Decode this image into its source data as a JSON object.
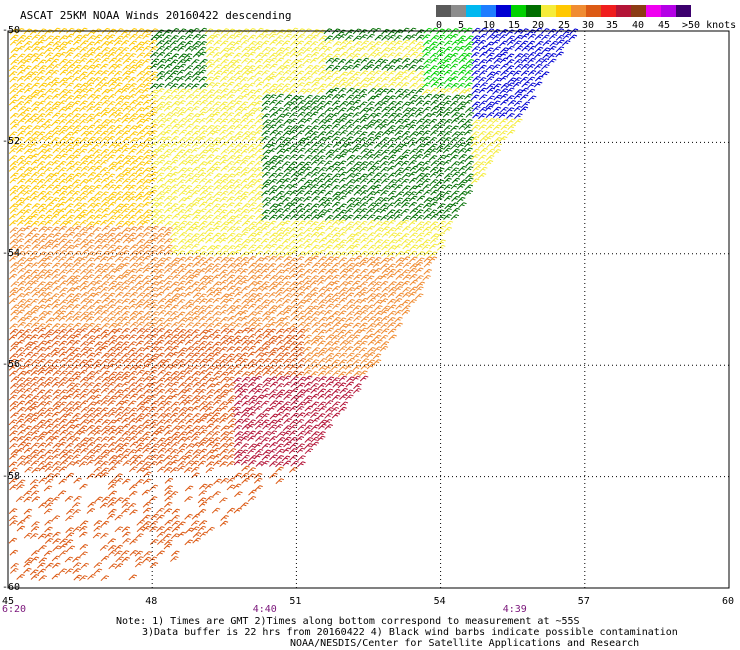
{
  "title": "ASCAT 25KM NOAA Winds 20160422 descending",
  "colorbar": {
    "swatches": [
      "#5a5a5a",
      "#8c8c8c",
      "#00b8f0",
      "#1e7dff",
      "#0000d2",
      "#00d200",
      "#006e00",
      "#f5ec3a",
      "#ffc800",
      "#f08c32",
      "#dc5a14",
      "#f01e1e",
      "#b41437",
      "#8c3c14",
      "#f000f0",
      "#b400e6",
      "#3c006e"
    ],
    "labels": [
      "0",
      "5",
      "10",
      "15",
      "20",
      "25",
      "30",
      "35",
      "40",
      "45",
      ">50 knots"
    ]
  },
  "map": {
    "lat_labels": [
      "-50",
      "-52",
      "-54",
      "-56",
      "-58",
      "-60"
    ],
    "lon_labels": [
      "45",
      "48",
      "51",
      "54",
      "57",
      "60"
    ],
    "lat_range": [
      -60,
      -50
    ],
    "lon_range": [
      45,
      60
    ],
    "time_labels": [
      {
        "lon": 45,
        "text": "6:20"
      },
      {
        "lon": 50.3,
        "text": "4:40"
      },
      {
        "lon": 55.5,
        "text": "4:39"
      }
    ],
    "grid": "dotted"
  },
  "notes": {
    "line1": "Note: 1) Times are GMT 2)Times along bottom correspond to measurement at ~55S",
    "line2": "3)Data buffer is 22 hrs from 20160422 4) Black wind barbs indicate possible contamination",
    "line3": "NOAA/NESDIS/Center for Satellite Applications and Research"
  }
}
